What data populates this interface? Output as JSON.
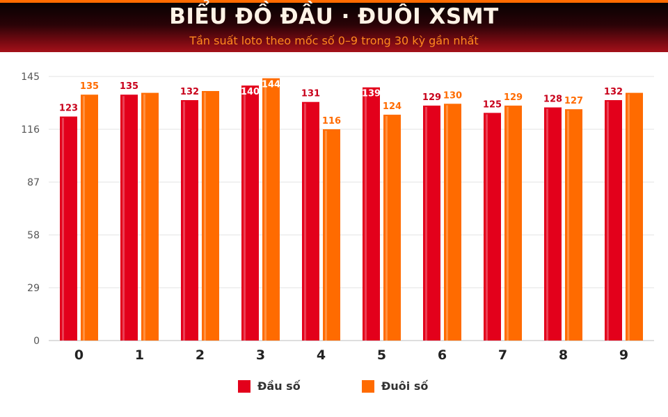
{
  "header": {
    "title": "BIỂU ĐỒ ĐẦU · ĐUÔI XSMT",
    "subtitle": "Tần suất loto theo mốc số 0–9 trong 30 kỳ gần nhất"
  },
  "colors": {
    "dau": "#e3001b",
    "duoi": "#ff6b00",
    "dau_label": "#c8001a",
    "duoi_label": "#ff6b00"
  },
  "chart_data": {
    "type": "bar",
    "title": "BIỂU ĐỒ ĐẦU · ĐUÔI XSMT",
    "subtitle": "Tần suất loto theo mốc số 0–9 trong 30 kỳ gần nhất",
    "categories": [
      "0",
      "1",
      "2",
      "3",
      "4",
      "5",
      "6",
      "7",
      "8",
      "9"
    ],
    "series": [
      {
        "name": "Đầu số",
        "values": [
          123,
          135,
          132,
          140,
          131,
          139,
          129,
          125,
          128,
          132
        ]
      },
      {
        "name": "Đuôi số",
        "values": [
          135,
          136,
          137,
          144,
          116,
          124,
          130,
          129,
          127,
          136
        ]
      }
    ],
    "data_labels": [
      [
        "123",
        "135",
        "132",
        "140",
        "131",
        "139",
        "129",
        "125",
        "128",
        "132"
      ],
      [
        "135",
        "",
        "",
        "144",
        "116",
        "124",
        "130",
        "129",
        "127",
        ""
      ]
    ],
    "yticks": [
      "0",
      "29",
      "58",
      "87",
      "116",
      "145"
    ],
    "ylim": [
      0,
      145
    ],
    "grid": true,
    "legend_position": "bottom-center"
  },
  "legend": {
    "items": [
      {
        "label": "Đầu số"
      },
      {
        "label": "Đuôi số"
      }
    ]
  }
}
